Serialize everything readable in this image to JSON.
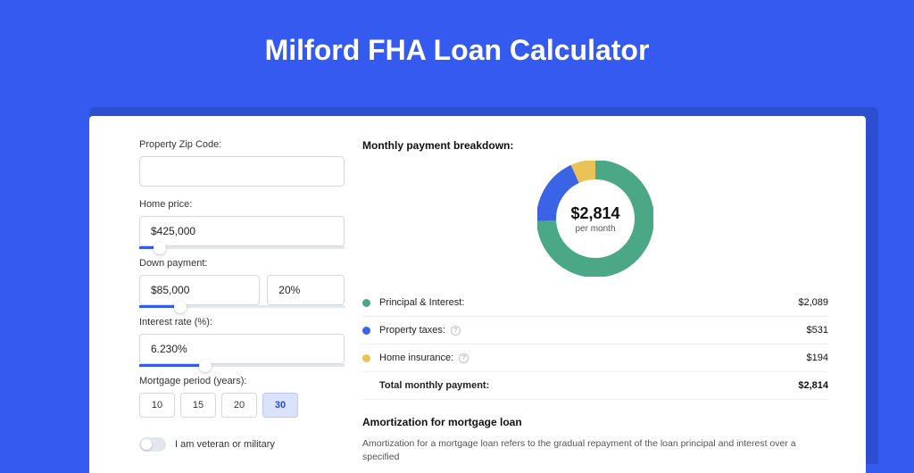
{
  "title": "Milford FHA Loan Calculator",
  "colors": {
    "page_bg": "#345af0",
    "shadow_bg": "#2e4ed0",
    "card_bg": "#ffffff",
    "border": "#d5d7de",
    "slider_track": "#e4e6ee",
    "slider_fill": "#345af0"
  },
  "form": {
    "zip": {
      "label": "Property Zip Code:",
      "value": ""
    },
    "home_price": {
      "label": "Home price:",
      "value": "$425,000",
      "slider_pct": 10
    },
    "down_payment": {
      "label": "Down payment:",
      "amount": "$85,000",
      "percent": "20%",
      "slider_pct": 20
    },
    "interest_rate": {
      "label": "Interest rate (%):",
      "value": "6.230%",
      "slider_pct": 32
    },
    "mortgage_period": {
      "label": "Mortgage period (years):",
      "options": [
        "10",
        "15",
        "20",
        "30"
      ],
      "selected": "30"
    },
    "veteran": {
      "label": "I am veteran or military",
      "checked": false
    }
  },
  "breakdown": {
    "title": "Monthly payment breakdown:",
    "total_amount": "$2,814",
    "total_sub": "per month",
    "donut": {
      "slices": [
        {
          "key": "pi",
          "color": "#4ba886",
          "pct": 74.3
        },
        {
          "key": "tax",
          "color": "#3a63e6",
          "pct": 18.9
        },
        {
          "key": "ins",
          "color": "#eac258",
          "pct": 6.8
        }
      ],
      "thickness": 22,
      "radius": 55
    },
    "rows": [
      {
        "label": "Principal & Interest:",
        "value": "$2,089",
        "color": "#4ba886",
        "info": false
      },
      {
        "label": "Property taxes:",
        "value": "$531",
        "color": "#3a63e6",
        "info": true
      },
      {
        "label": "Home insurance:",
        "value": "$194",
        "color": "#eac258",
        "info": true
      }
    ],
    "total_row": {
      "label": "Total monthly payment:",
      "value": "$2,814"
    }
  },
  "amortization": {
    "title": "Amortization for mortgage loan",
    "text": "Amortization for a mortgage loan refers to the gradual repayment of the loan principal and interest over a specified"
  }
}
